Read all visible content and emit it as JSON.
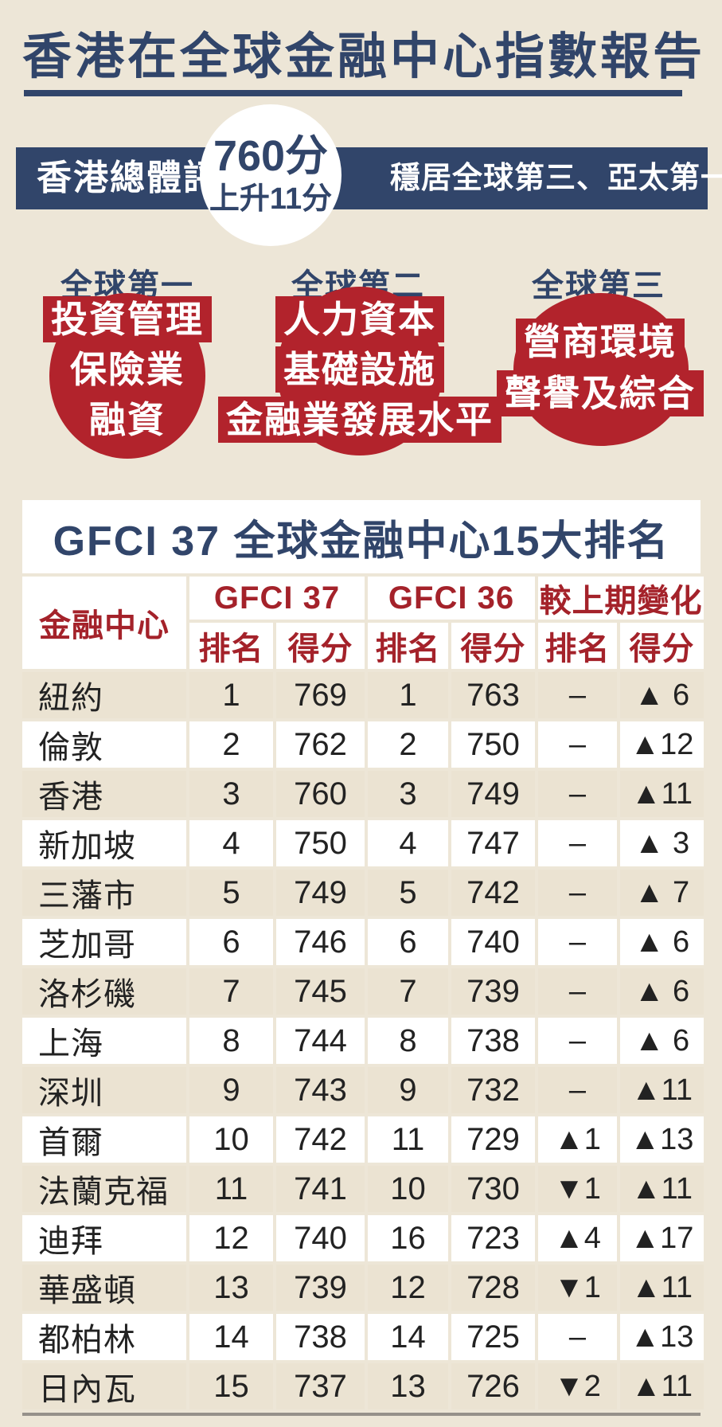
{
  "page_title": "香港在全球金融中心指數報告",
  "banner": {
    "left_label": "香港總體評分",
    "score": "760分",
    "score_change": "上升11分",
    "right_label": "穩居全球第三、亞太第一"
  },
  "circles": [
    {
      "heading": "全球第一",
      "items": [
        "投資管理",
        "保險業",
        "融資"
      ]
    },
    {
      "heading": "全球第二",
      "items": [
        "人力資本",
        "基礎設施",
        "金融業發展水平"
      ]
    },
    {
      "heading": "全球第三",
      "items": [
        "營商環境",
        "聲譽及綜合"
      ]
    }
  ],
  "table": {
    "title": "GFCI 37 全球金融中心15大排名",
    "group_headers": [
      "金融中心",
      "GFCI 37",
      "GFCI 36",
      "較上期變化"
    ],
    "sub_headers": [
      "排名",
      "得分",
      "排名",
      "得分",
      "排名",
      "得分"
    ],
    "rows": [
      {
        "city": "紐約",
        "r37": "1",
        "s37": "769",
        "r36": "1",
        "s36": "763",
        "cr": "–",
        "cs": "▲ 6"
      },
      {
        "city": "倫敦",
        "r37": "2",
        "s37": "762",
        "r36": "2",
        "s36": "750",
        "cr": "–",
        "cs": "▲12"
      },
      {
        "city": "香港",
        "r37": "3",
        "s37": "760",
        "r36": "3",
        "s36": "749",
        "cr": "–",
        "cs": "▲11"
      },
      {
        "city": "新加坡",
        "r37": "4",
        "s37": "750",
        "r36": "4",
        "s36": "747",
        "cr": "–",
        "cs": "▲ 3"
      },
      {
        "city": "三藩市",
        "r37": "5",
        "s37": "749",
        "r36": "5",
        "s36": "742",
        "cr": "–",
        "cs": "▲ 7"
      },
      {
        "city": "芝加哥",
        "r37": "6",
        "s37": "746",
        "r36": "6",
        "s36": "740",
        "cr": "–",
        "cs": "▲ 6"
      },
      {
        "city": "洛杉磯",
        "r37": "7",
        "s37": "745",
        "r36": "7",
        "s36": "739",
        "cr": "–",
        "cs": "▲ 6"
      },
      {
        "city": "上海",
        "r37": "8",
        "s37": "744",
        "r36": "8",
        "s36": "738",
        "cr": "–",
        "cs": "▲ 6"
      },
      {
        "city": "深圳",
        "r37": "9",
        "s37": "743",
        "r36": "9",
        "s36": "732",
        "cr": "–",
        "cs": "▲11"
      },
      {
        "city": "首爾",
        "r37": "10",
        "s37": "742",
        "r36": "11",
        "s36": "729",
        "cr": "▲1",
        "cs": "▲13"
      },
      {
        "city": "法蘭克福",
        "r37": "11",
        "s37": "741",
        "r36": "10",
        "s36": "730",
        "cr": "▼1",
        "cs": "▲11"
      },
      {
        "city": "迪拜",
        "r37": "12",
        "s37": "740",
        "r36": "16",
        "s36": "723",
        "cr": "▲4",
        "cs": "▲17"
      },
      {
        "city": "華盛頓",
        "r37": "13",
        "s37": "739",
        "r36": "12",
        "s36": "728",
        "cr": "▼1",
        "cs": "▲11"
      },
      {
        "city": "都柏林",
        "r37": "14",
        "s37": "738",
        "r36": "14",
        "s36": "725",
        "cr": "–",
        "cs": "▲13"
      },
      {
        "city": "日內瓦",
        "r37": "15",
        "s37": "737",
        "r36": "13",
        "s36": "726",
        "cr": "▼2",
        "cs": "▲11"
      }
    ]
  },
  "colors": {
    "navy": "#31456a",
    "red": "#b2232c",
    "header_red": "#a4222a",
    "background_beige": "#ede6d7",
    "row_beige": "#ebe3d2",
    "white": "#ffffff"
  },
  "chart_data": {
    "type": "table",
    "title": "GFCI 37 全球金融中心15大排名",
    "columns": [
      "金融中心",
      "GFCI 37 排名",
      "GFCI 37 得分",
      "GFCI 36 排名",
      "GFCI 36 得分",
      "較上期變化 排名",
      "較上期變化 得分"
    ],
    "rows": [
      [
        "紐約",
        1,
        769,
        1,
        763,
        "–",
        "▲6"
      ],
      [
        "倫敦",
        2,
        762,
        2,
        750,
        "–",
        "▲12"
      ],
      [
        "香港",
        3,
        760,
        3,
        749,
        "–",
        "▲11"
      ],
      [
        "新加坡",
        4,
        750,
        4,
        747,
        "–",
        "▲3"
      ],
      [
        "三藩市",
        5,
        749,
        5,
        742,
        "–",
        "▲7"
      ],
      [
        "芝加哥",
        6,
        746,
        6,
        740,
        "–",
        "▲6"
      ],
      [
        "洛杉磯",
        7,
        745,
        7,
        739,
        "–",
        "▲6"
      ],
      [
        "上海",
        8,
        744,
        8,
        738,
        "–",
        "▲6"
      ],
      [
        "深圳",
        9,
        743,
        9,
        732,
        "–",
        "▲11"
      ],
      [
        "首爾",
        10,
        742,
        11,
        729,
        "▲1",
        "▲13"
      ],
      [
        "法蘭克福",
        11,
        741,
        10,
        730,
        "▼1",
        "▲11"
      ],
      [
        "迪拜",
        12,
        740,
        16,
        723,
        "▲4",
        "▲17"
      ],
      [
        "華盛頓",
        13,
        739,
        12,
        728,
        "▼1",
        "▲11"
      ],
      [
        "都柏林",
        14,
        738,
        14,
        725,
        "–",
        "▲13"
      ],
      [
        "日內瓦",
        15,
        737,
        13,
        726,
        "▼2",
        "▲11"
      ]
    ],
    "highlights": {
      "overall_score": 760,
      "score_change": "+11",
      "global_rank": 3,
      "asia_pacific_rank": 1,
      "rank_1_categories": [
        "投資管理",
        "保險業",
        "融資"
      ],
      "rank_2_categories": [
        "人力資本",
        "基礎設施",
        "金融業發展水平"
      ],
      "rank_3_categories": [
        "營商環境",
        "聲譽及綜合"
      ]
    }
  }
}
